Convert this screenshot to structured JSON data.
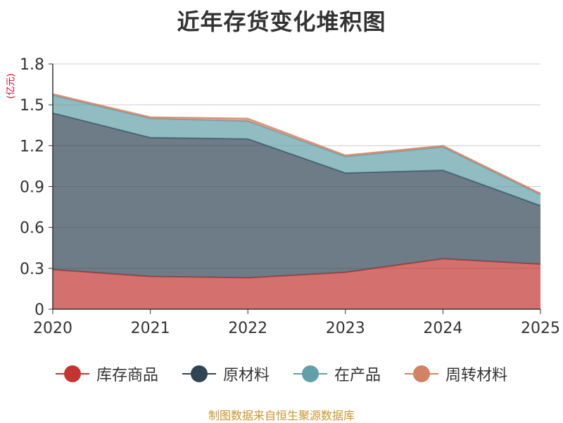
{
  "chart_data": {
    "type": "area",
    "stacked": true,
    "title": "近年存货变化堆积图",
    "ylabel": "(亿元)",
    "xlabel": "",
    "categories": [
      "2020",
      "2021",
      "2022",
      "2023",
      "2024",
      "2025"
    ],
    "ylim": [
      0,
      1.8
    ],
    "yticks": [
      "0",
      "0.3",
      "0.6",
      "0.9",
      "1.2",
      "1.5",
      "1.8"
    ],
    "grid": true,
    "legend_position": "bottom",
    "series": [
      {
        "name": "库存商品",
        "color": "#c23531",
        "values": [
          0.29,
          0.24,
          0.23,
          0.27,
          0.37,
          0.33
        ]
      },
      {
        "name": "原材料",
        "color": "#2f4554",
        "values": [
          1.15,
          1.02,
          1.02,
          0.73,
          0.65,
          0.43
        ]
      },
      {
        "name": "在产品",
        "color": "#61a0a8",
        "values": [
          0.13,
          0.14,
          0.13,
          0.12,
          0.17,
          0.08
        ]
      },
      {
        "name": "周转材料",
        "color": "#d48265",
        "values": [
          0.01,
          0.01,
          0.02,
          0.01,
          0.01,
          0.01
        ]
      }
    ]
  },
  "source": "制图数据来自恒生聚源数据库"
}
